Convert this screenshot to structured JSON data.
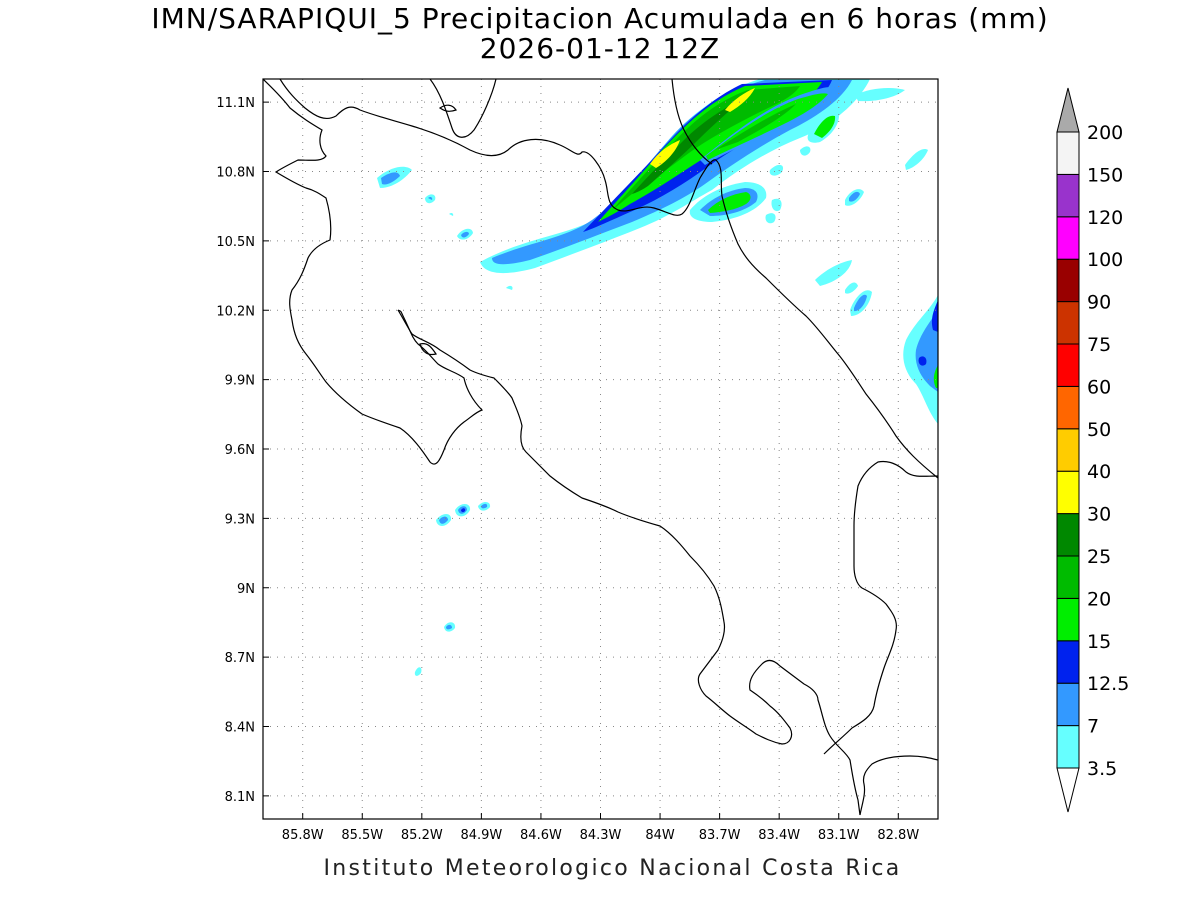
{
  "title": {
    "line1": "IMN/SARAPIQUI_5 Precipitacion Acumulada en 6 horas (mm)",
    "line2": "2026-01-12 12Z"
  },
  "footer": "Instituto Meteorologico Nacional Costa Rica",
  "map": {
    "lon_range": [
      -86.0,
      -82.6
    ],
    "lat_range": [
      8.0,
      11.2
    ],
    "lon_ticks": [
      -85.8,
      -85.5,
      -85.2,
      -84.9,
      -84.6,
      -84.3,
      -84.0,
      -83.7,
      -83.4,
      -83.1,
      -82.8
    ],
    "lon_labels": [
      "85.8W",
      "85.5W",
      "85.2W",
      "84.9W",
      "84.6W",
      "84.3W",
      "84W",
      "83.7W",
      "83.4W",
      "83.1W",
      "82.8W"
    ],
    "lat_ticks": [
      8.1,
      8.4,
      8.7,
      9.0,
      9.3,
      9.6,
      9.9,
      10.2,
      10.5,
      10.8,
      11.1
    ],
    "lat_labels": [
      "8.1N",
      "8.4N",
      "8.7N",
      "9N",
      "9.3N",
      "9.6N",
      "9.9N",
      "10.2N",
      "10.5N",
      "10.8N",
      "11.1N"
    ],
    "grid": "dotted"
  },
  "colorbar": {
    "unit": "mm",
    "levels": [
      "3.5",
      "7",
      "12.5",
      "15",
      "20",
      "25",
      "30",
      "40",
      "50",
      "60",
      "75",
      "90",
      "100",
      "120",
      "150",
      "200"
    ],
    "colors": [
      "#66ffff",
      "#3399ff",
      "#0022ee",
      "#00ee00",
      "#00bb00",
      "#008800",
      "#ffff00",
      "#ffcc00",
      "#ff6600",
      "#ff0000",
      "#cc3300",
      "#990000",
      "#ff00ff",
      "#9933cc",
      "#f4f4f4"
    ],
    "under_color": "#ffffff",
    "over_color": "#aaaaaa"
  },
  "colors": {
    "coastline": "#000000",
    "grid": "#888888"
  }
}
